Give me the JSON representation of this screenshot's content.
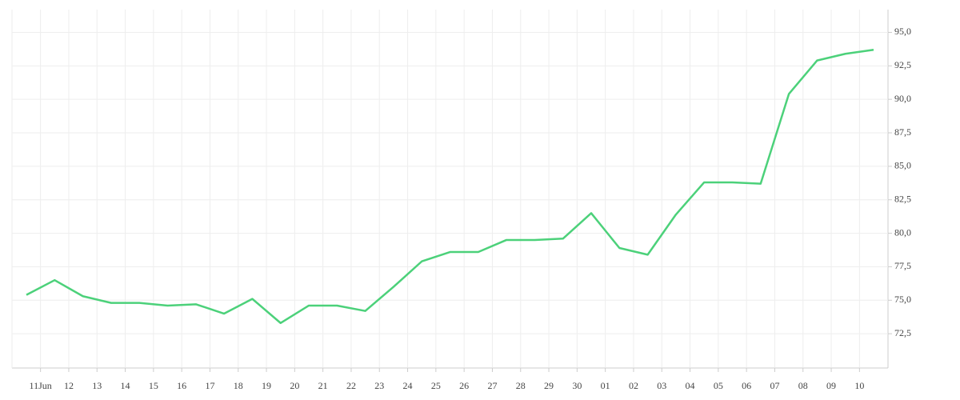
{
  "chart_data": {
    "type": "line",
    "categories": [
      "11Jun",
      "12",
      "13",
      "14",
      "15",
      "16",
      "17",
      "18",
      "19",
      "20",
      "21",
      "22",
      "23",
      "24",
      "25",
      "26",
      "27",
      "28",
      "29",
      "30",
      "01",
      "02",
      "03",
      "04",
      "05",
      "06",
      "07",
      "08",
      "09",
      "10",
      null
    ],
    "series": [
      {
        "color": "#4cd17a",
        "values": [
          75.4,
          76.5,
          75.3,
          74.8,
          74.8,
          74.6,
          74.7,
          74.0,
          75.1,
          73.3,
          74.6,
          74.6,
          74.2,
          76.0,
          77.9,
          78.6,
          78.6,
          79.5,
          79.5,
          79.6,
          81.5,
          78.9,
          78.4,
          81.4,
          83.8,
          83.8,
          83.7,
          90.4,
          92.9,
          93.4,
          93.7
        ]
      }
    ],
    "ylim": [
      70,
      96.7
    ],
    "yticks": [
      {
        "value": 72.5,
        "label": "72,5"
      },
      {
        "value": 75,
        "label": "75,0"
      },
      {
        "value": 77.5,
        "label": "77,5"
      },
      {
        "value": 80,
        "label": "80,0"
      },
      {
        "value": 82.5,
        "label": "82,5"
      },
      {
        "value": 85,
        "label": "85,0"
      },
      {
        "value": 87.5,
        "label": "87,5"
      },
      {
        "value": 90,
        "label": "90,0"
      },
      {
        "value": 92.5,
        "label": "92,5"
      },
      {
        "value": 95,
        "label": "95,0"
      }
    ],
    "grid": true
  }
}
